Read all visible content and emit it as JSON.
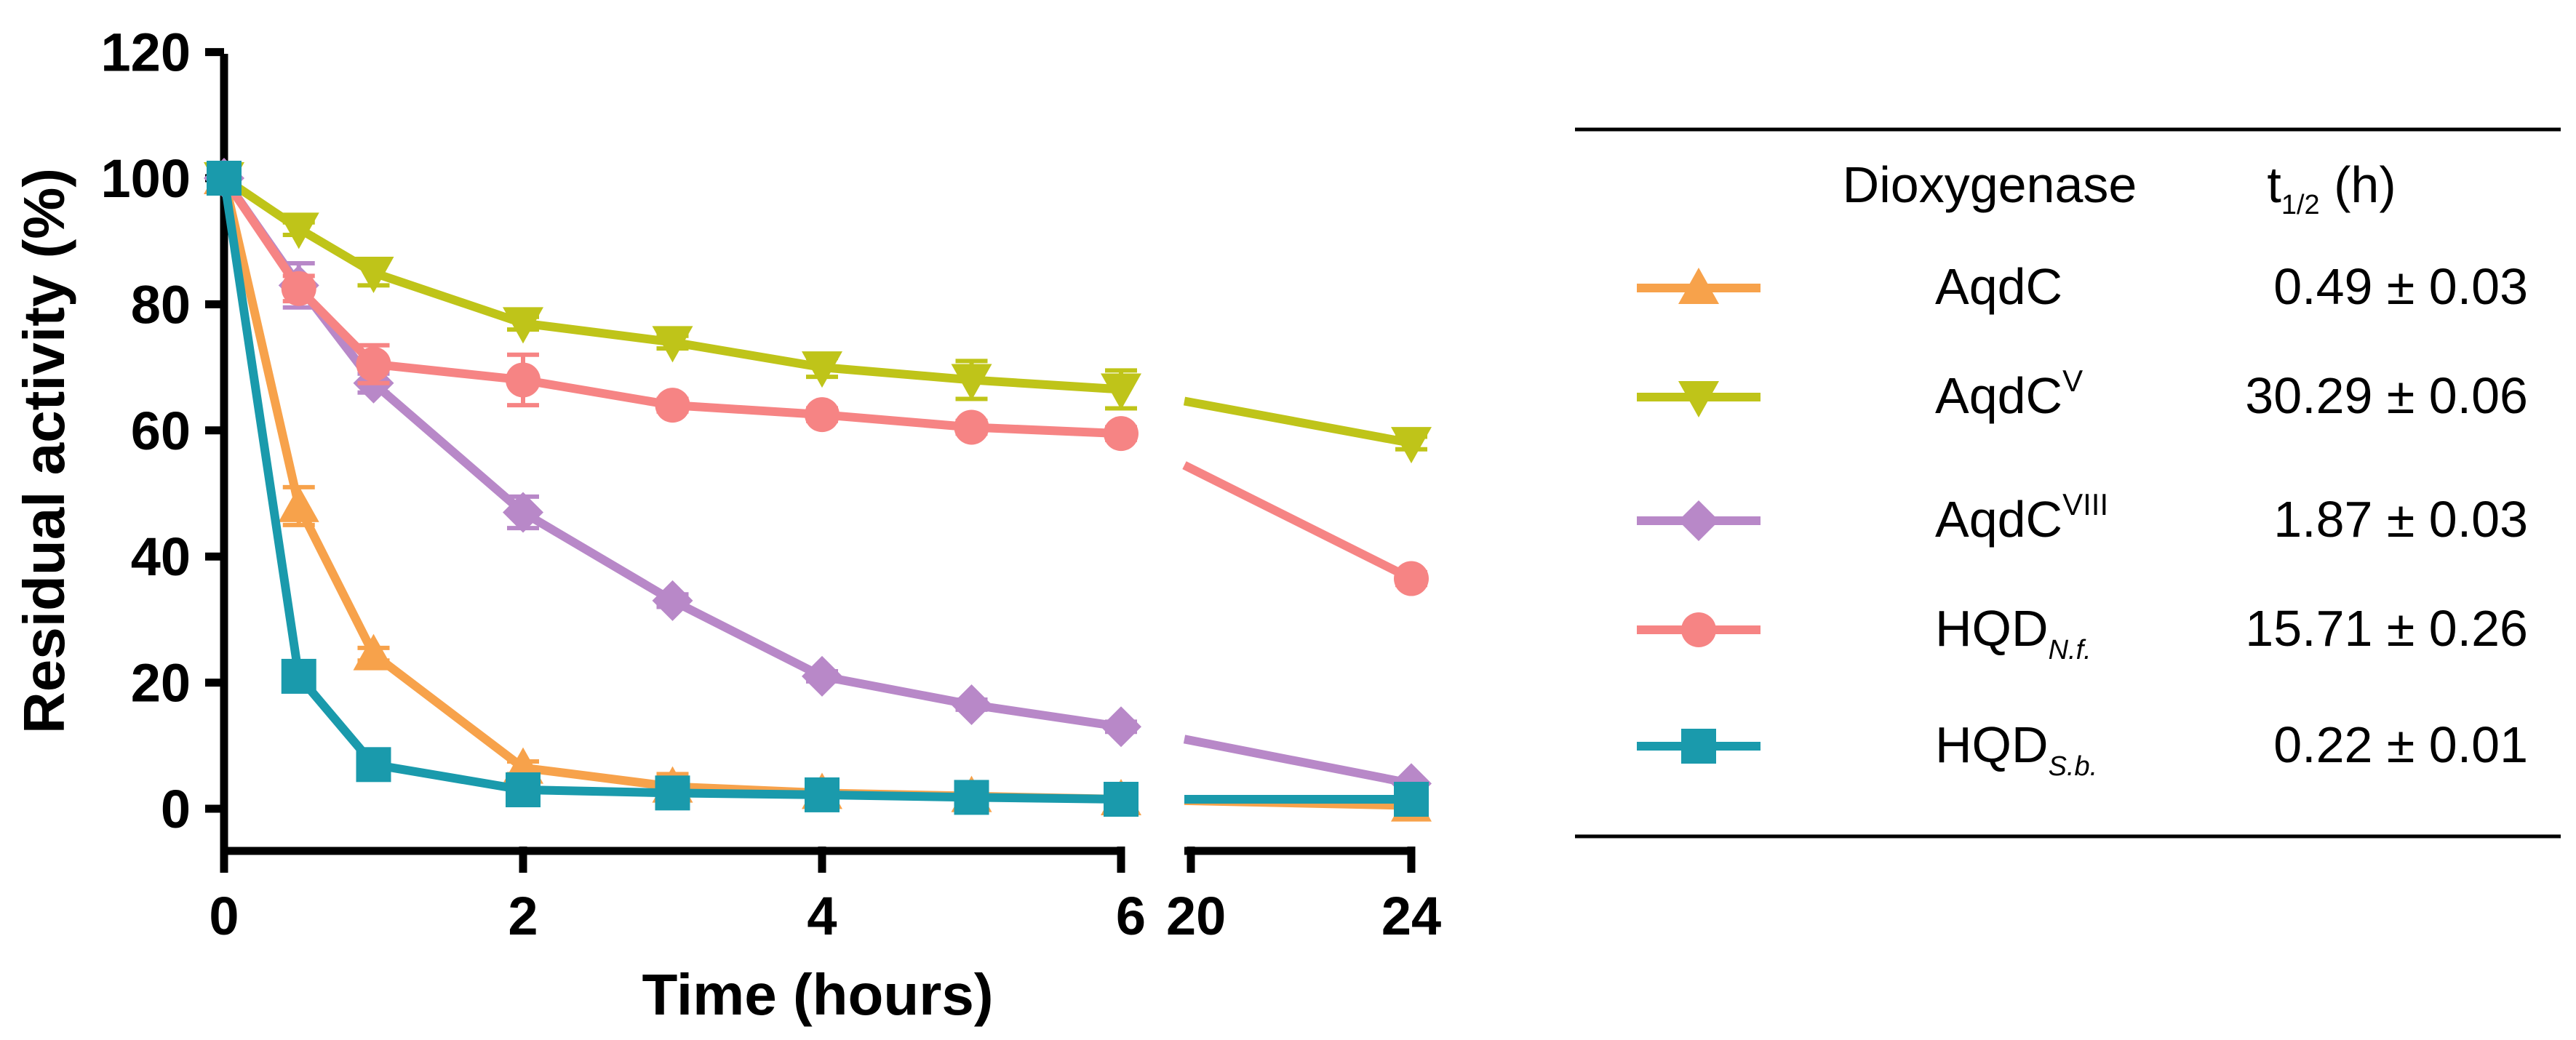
{
  "chart_data": {
    "type": "line",
    "title": "",
    "xlabel": "Time (hours)",
    "ylabel": "Residual activity (%)",
    "ylim": [
      0,
      120
    ],
    "y_ticks": [
      0,
      20,
      40,
      60,
      80,
      100,
      120
    ],
    "x_segments": [
      {
        "range": [
          0,
          6
        ],
        "ticks": [
          0,
          2,
          4,
          6
        ]
      },
      {
        "range": [
          20,
          24
        ],
        "ticks": [
          20,
          24
        ]
      }
    ],
    "x_tick_labels": [
      "0",
      "2",
      "4",
      "6",
      "20",
      "24"
    ],
    "series": [
      {
        "name": "AqdC",
        "sup": "",
        "sub": "",
        "color": "#F7A24B",
        "marker": "triangle-up",
        "x": [
          0,
          0.5,
          1,
          2,
          3,
          4,
          5,
          6,
          24
        ],
        "y": [
          100,
          48,
          24.5,
          6.5,
          3.5,
          2.5,
          2,
          1.5,
          0.5
        ],
        "err": [
          0,
          3,
          1,
          1,
          2,
          1,
          1,
          0.5,
          0.3
        ]
      },
      {
        "name": "AqdC",
        "sup": "V",
        "sub": "",
        "color": "#BFC419",
        "marker": "triangle-down",
        "x": [
          0,
          0.5,
          1,
          2,
          3,
          4,
          5,
          6,
          24
        ],
        "y": [
          100,
          92,
          85,
          77,
          74,
          70,
          68,
          66.5,
          58
        ],
        "err": [
          0,
          1,
          2,
          1,
          1,
          1.5,
          3,
          3,
          1
        ]
      },
      {
        "name": "AqdC",
        "sup": "VIII",
        "sub": "",
        "color": "#B888C8",
        "marker": "diamond",
        "x": [
          0,
          0.5,
          1,
          2,
          3,
          4,
          5,
          6,
          24
        ],
        "y": [
          100,
          83,
          67.5,
          47,
          33,
          21,
          16.5,
          13,
          4
        ],
        "err": [
          0,
          3.5,
          1.5,
          2.5,
          1,
          0.8,
          0.8,
          0.8,
          0.5
        ]
      },
      {
        "name": "HQD",
        "sup": "",
        "sub": "N.f.",
        "color": "#F68484",
        "marker": "circle",
        "x": [
          0,
          0.5,
          1,
          2,
          3,
          4,
          5,
          6,
          24
        ],
        "y": [
          100,
          82.5,
          70.5,
          68,
          64,
          62.5,
          60.5,
          59.5,
          36.5
        ],
        "err": [
          0,
          2,
          3,
          4,
          1,
          1,
          1,
          1,
          1
        ]
      },
      {
        "name": "HQD",
        "sup": "",
        "sub": "S.b.",
        "color": "#1A9AAC",
        "marker": "square",
        "x": [
          0,
          0.5,
          1,
          2,
          3,
          4,
          5,
          6,
          24
        ],
        "y": [
          100,
          21,
          7,
          3,
          2.5,
          2.2,
          1.8,
          1.5,
          1.5
        ],
        "err": [
          0,
          1,
          1,
          0.5,
          0.5,
          0.5,
          0.5,
          0.5,
          0.5
        ]
      }
    ]
  },
  "table": {
    "header_name": "Dioxygenase",
    "header_value_main": "t",
    "header_value_sub": "1/2",
    "header_value_unit": " (h)",
    "rows": [
      {
        "name": "AqdC",
        "sup": "",
        "sub": "",
        "value": "0.49 ± 0.03"
      },
      {
        "name": "AqdC",
        "sup": "V",
        "sub": "",
        "value": "30.29 ± 0.06"
      },
      {
        "name": "AqdC",
        "sup": "VIII",
        "sub": "",
        "value": "1.87 ± 0.03"
      },
      {
        "name": "HQD",
        "sup": "",
        "sub": "N.f.",
        "value": "15.71 ± 0.26"
      },
      {
        "name": "HQD",
        "sup": "",
        "sub": "S.b.",
        "value": "0.22 ± 0.01"
      }
    ]
  }
}
